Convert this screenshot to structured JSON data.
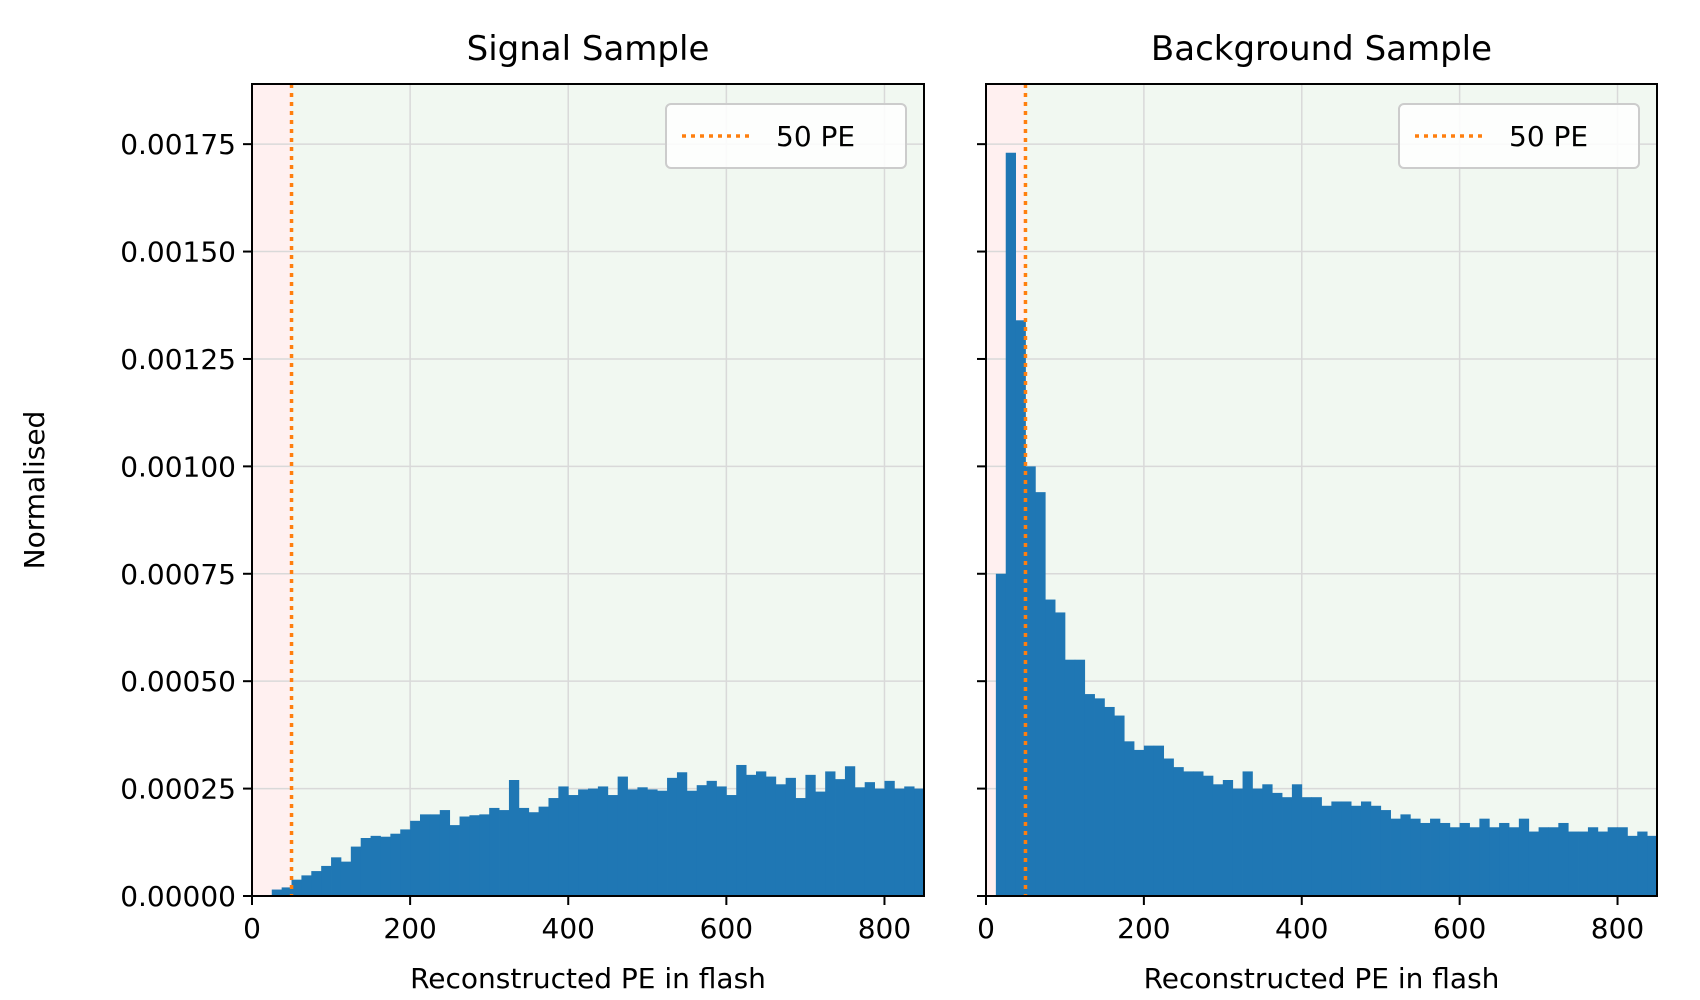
{
  "figure": {
    "ylabel": "Normalised"
  },
  "colors": {
    "bar": "#1f77b4",
    "threshold_line": "#ff7f0e",
    "rejected_region": "#fff0f0",
    "accepted_region": "#f1f8f1",
    "grid": "#d9d9d9"
  },
  "chart_data": [
    {
      "type": "bar",
      "title": "Signal Sample",
      "xlabel": "Reconstructed PE in flash",
      "ylabel": "Normalised",
      "xlim": [
        0,
        850
      ],
      "ylim": [
        0,
        0.00189
      ],
      "xticks": [
        0,
        200,
        400,
        600,
        800
      ],
      "xtick_labels": [
        "0",
        "200",
        "400",
        "600",
        "800"
      ],
      "yticks": [
        0,
        0.00025,
        0.0005,
        0.00075,
        0.001,
        0.00125,
        0.0015,
        0.00175
      ],
      "ytick_labels": [
        "0.00000",
        "0.00025",
        "0.00050",
        "0.00075",
        "0.00100",
        "0.00125",
        "0.00150",
        "0.00175"
      ],
      "grid": true,
      "legend": {
        "position": "top-right",
        "entries": [
          "50 PE"
        ]
      },
      "threshold": {
        "label": "50 PE",
        "x": 50
      },
      "bin_start": 0,
      "bin_width": 12.5,
      "values": [
        0,
        0,
        1.5e-05,
        2e-05,
        3.8e-05,
        4.8e-05,
        5.8e-05,
        7e-05,
        9e-05,
        8e-05,
        0.000115,
        0.000135,
        0.00014,
        0.000138,
        0.000145,
        0.000155,
        0.000175,
        0.00019,
        0.00019,
        0.0002,
        0.000165,
        0.000185,
        0.000188,
        0.00019,
        0.000205,
        0.0002,
        0.00027,
        0.000205,
        0.000195,
        0.000208,
        0.000228,
        0.000255,
        0.000235,
        0.000248,
        0.00025,
        0.000255,
        0.000235,
        0.000278,
        0.000248,
        0.000253,
        0.000248,
        0.000245,
        0.000275,
        0.000288,
        0.000245,
        0.000258,
        0.000268,
        0.000255,
        0.000235,
        0.000305,
        0.000282,
        0.00029,
        0.000278,
        0.00026,
        0.000275,
        0.000228,
        0.000282,
        0.000243,
        0.00029,
        0.000272,
        0.000302,
        0.000253,
        0.000265,
        0.00025,
        0.000268,
        0.00025,
        0.000255,
        0.00025
      ]
    },
    {
      "type": "bar",
      "title": "Background Sample",
      "xlabel": "Reconstructed PE in flash",
      "xlim": [
        0,
        850
      ],
      "ylim": [
        0,
        0.00189
      ],
      "xticks": [
        0,
        200,
        400,
        600,
        800
      ],
      "xtick_labels": [
        "0",
        "200",
        "400",
        "600",
        "800"
      ],
      "yticks": [
        0,
        0.00025,
        0.0005,
        0.00075,
        0.001,
        0.00125,
        0.0015,
        0.00175
      ],
      "grid": true,
      "legend": {
        "position": "top-right",
        "entries": [
          "50 PE"
        ]
      },
      "threshold": {
        "label": "50 PE",
        "x": 50
      },
      "bin_start": 12.5,
      "bin_width": 12.5,
      "values": [
        0.00075,
        0.00173,
        0.00134,
        0.001,
        0.00094,
        0.00069,
        0.00066,
        0.00055,
        0.00055,
        0.00047,
        0.00046,
        0.00044,
        0.00042,
        0.00036,
        0.00034,
        0.00035,
        0.00035,
        0.00032,
        0.0003,
        0.00029,
        0.00029,
        0.00028,
        0.00026,
        0.00027,
        0.00025,
        0.00029,
        0.00025,
        0.00026,
        0.00024,
        0.00023,
        0.00026,
        0.00023,
        0.00023,
        0.00021,
        0.00022,
        0.00022,
        0.00021,
        0.00022,
        0.00021,
        0.0002,
        0.00018,
        0.00019,
        0.00018,
        0.00017,
        0.00018,
        0.00017,
        0.00016,
        0.00017,
        0.00016,
        0.00018,
        0.00016,
        0.00017,
        0.00016,
        0.00018,
        0.00015,
        0.00016,
        0.00016,
        0.00017,
        0.00015,
        0.00015,
        0.00016,
        0.00015,
        0.00016,
        0.00016,
        0.00014,
        0.00015,
        0.00014,
        0.00013
      ]
    }
  ]
}
